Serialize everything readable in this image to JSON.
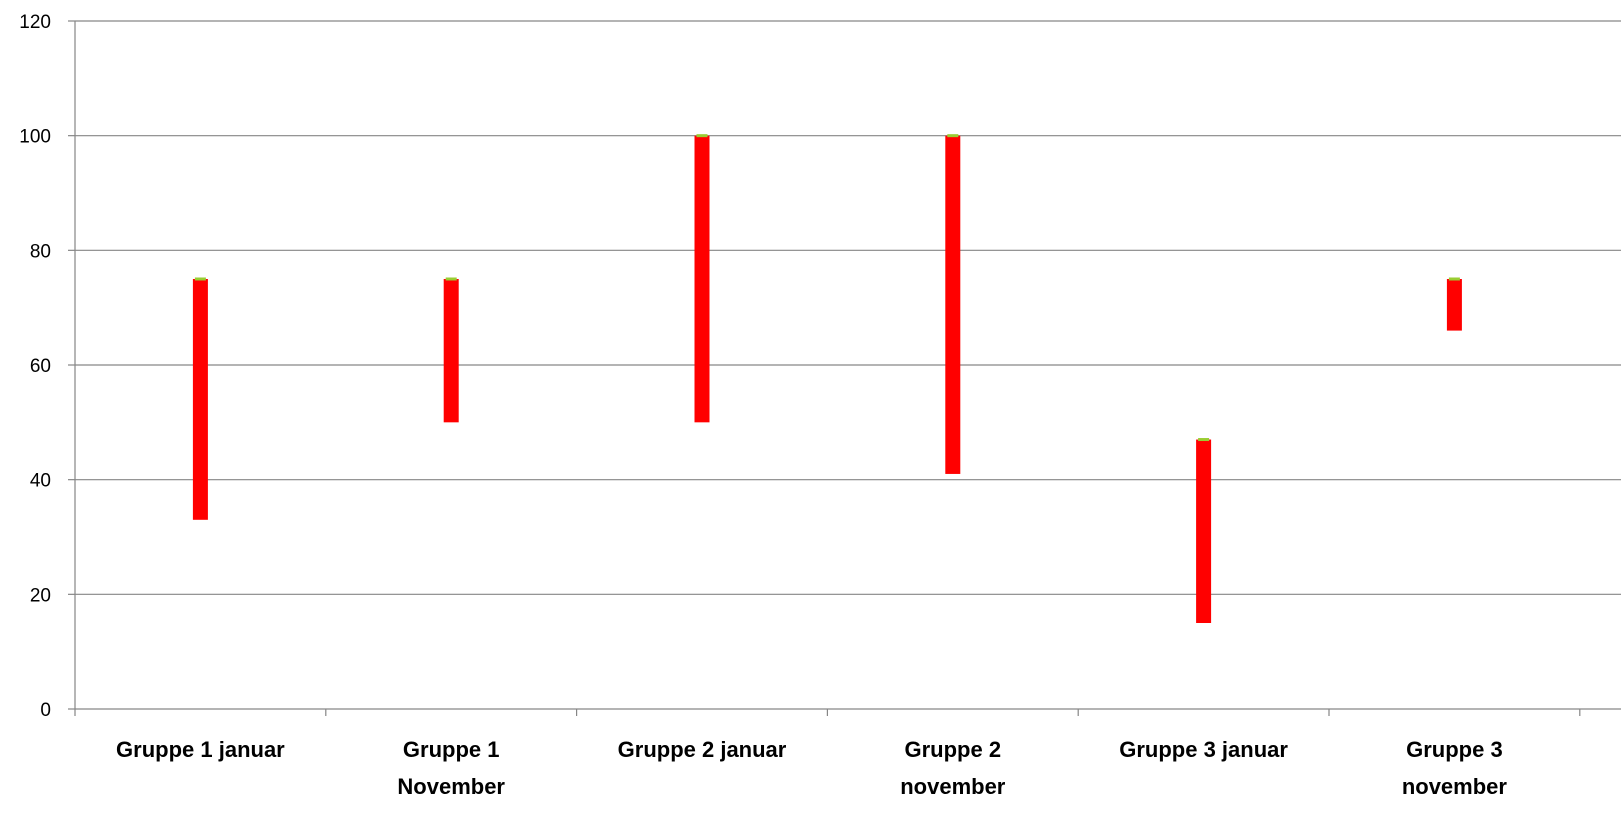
{
  "chart_data": {
    "type": "bar",
    "subtype": "floating-range",
    "title": "",
    "xlabel": "",
    "ylabel": "",
    "ylim": [
      0,
      120
    ],
    "yticks": [
      0,
      20,
      40,
      60,
      80,
      100,
      120
    ],
    "grid": true,
    "legend": "none",
    "colors": {
      "range_bar": "#ff0000",
      "high_marker": "#9acd32",
      "gridline": "#868686",
      "axis": "#868686"
    },
    "categories": [
      [
        "Gruppe 1 januar"
      ],
      [
        "Gruppe 1",
        "November"
      ],
      [
        "Gruppe 2 januar"
      ],
      [
        "Gruppe 2",
        "november"
      ],
      [
        "Gruppe 3 januar"
      ],
      [
        "Gruppe 3",
        "november"
      ]
    ],
    "ranges": [
      {
        "low": 33,
        "high": 75
      },
      {
        "low": 50,
        "high": 75
      },
      {
        "low": 50,
        "high": 100
      },
      {
        "low": 41,
        "high": 100
      },
      {
        "low": 15,
        "high": 47
      },
      {
        "low": 66,
        "high": 75
      }
    ]
  }
}
